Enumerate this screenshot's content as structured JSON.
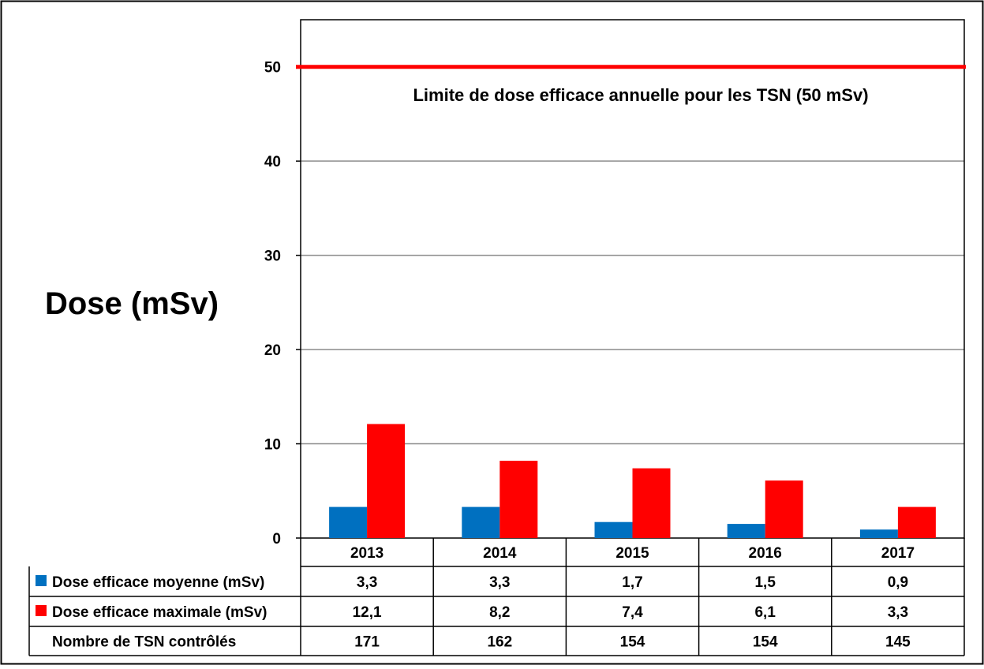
{
  "chart_data": {
    "type": "bar",
    "ylabel": "Dose (mSv)",
    "ylim": [
      0,
      55
    ],
    "yticks": [
      0,
      10,
      20,
      30,
      40,
      50
    ],
    "grid": true,
    "categories": [
      "2013",
      "2014",
      "2015",
      "2016",
      "2017"
    ],
    "series": [
      {
        "name": "Dose efficace moyenne (mSv)",
        "values": [
          3.3,
          3.3,
          1.7,
          1.5,
          0.9
        ],
        "labels": [
          "3,3",
          "3,3",
          "1,7",
          "1,5",
          "0,9"
        ],
        "color": "#0070C0"
      },
      {
        "name": "Dose efficace maximale (mSv)",
        "values": [
          12.1,
          8.2,
          7.4,
          6.1,
          3.3
        ],
        "labels": [
          "12,1",
          "8,2",
          "7,4",
          "6,1",
          "3,3"
        ],
        "color": "#FF0000"
      }
    ],
    "extra_row": {
      "name": "Nombre de TSN contrôlés",
      "values": [
        "171",
        "162",
        "154",
        "154",
        "145"
      ]
    },
    "reference_line": {
      "value": 50,
      "color": "#FF0000",
      "label": "Limite de dose efficace annuelle pour les TSN (50 mSv)"
    }
  }
}
